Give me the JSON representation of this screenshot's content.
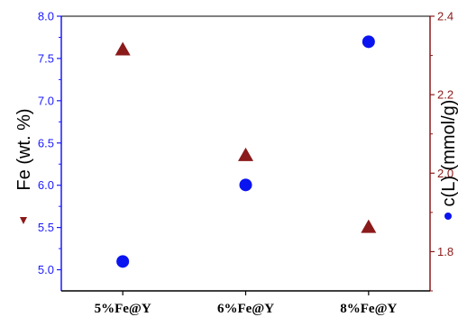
{
  "chart_data": {
    "type": "scatter",
    "categories": [
      "5%Fe@Y",
      "6%Fe@Y",
      "8%Fe@Y"
    ],
    "series": [
      {
        "axis": "left",
        "marker": "triangle",
        "color": "#8b1a1a",
        "values": [
          7.6,
          6.35,
          5.5
        ]
      },
      {
        "axis": "right",
        "marker": "circle",
        "color": "#0a14f0",
        "values": [
          1.775,
          1.97,
          2.335
        ]
      }
    ],
    "ylabel_left": "Fe (wt. %)",
    "ylabel_right": "c(L) (mmol/g)",
    "ylim_left": [
      4.75,
      8.0
    ],
    "ylim_right": [
      1.7,
      2.4
    ],
    "yticks_left": [
      "5.0",
      "5.5",
      "6.0",
      "6.5",
      "7.0",
      "7.5",
      "8.0"
    ],
    "yticks_right": [
      "1.8",
      "2.0",
      "2.2",
      "2.4"
    ],
    "colors": {
      "left_axis": "#1a1aff",
      "right_axis": "#8b1a1a"
    },
    "grid": false
  }
}
